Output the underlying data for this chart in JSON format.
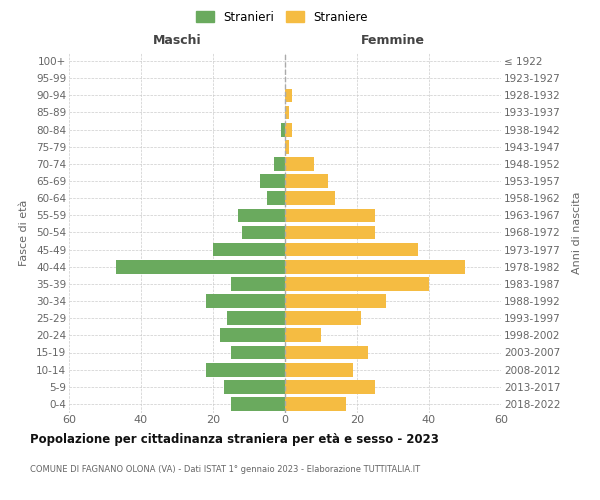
{
  "age_groups": [
    "100+",
    "95-99",
    "90-94",
    "85-89",
    "80-84",
    "75-79",
    "70-74",
    "65-69",
    "60-64",
    "55-59",
    "50-54",
    "45-49",
    "40-44",
    "35-39",
    "30-34",
    "25-29",
    "20-24",
    "15-19",
    "10-14",
    "5-9",
    "0-4"
  ],
  "birth_years": [
    "≤ 1922",
    "1923-1927",
    "1928-1932",
    "1933-1937",
    "1938-1942",
    "1943-1947",
    "1948-1952",
    "1953-1957",
    "1958-1962",
    "1963-1967",
    "1968-1972",
    "1973-1977",
    "1978-1982",
    "1983-1987",
    "1988-1992",
    "1993-1997",
    "1998-2002",
    "2003-2007",
    "2008-2012",
    "2013-2017",
    "2018-2022"
  ],
  "maschi": [
    0,
    0,
    0,
    0,
    1,
    0,
    3,
    7,
    5,
    13,
    12,
    20,
    47,
    15,
    22,
    16,
    18,
    15,
    22,
    17,
    15
  ],
  "femmine": [
    0,
    0,
    2,
    1,
    2,
    1,
    8,
    12,
    14,
    25,
    25,
    37,
    50,
    40,
    28,
    21,
    10,
    23,
    19,
    25,
    17
  ],
  "color_maschi": "#6aaa5e",
  "color_femmine": "#f5bc42",
  "title": "Popolazione per cittadinanza straniera per età e sesso - 2023",
  "subtitle": "COMUNE DI FAGNANO OLONA (VA) - Dati ISTAT 1° gennaio 2023 - Elaborazione TUTTITALIA.IT",
  "xlabel_left": "Maschi",
  "xlabel_right": "Femmine",
  "ylabel_left": "Fasce di età",
  "ylabel_right": "Anni di nascita",
  "legend_maschi": "Stranieri",
  "legend_femmine": "Straniere",
  "xlim": 60,
  "background_color": "#ffffff",
  "grid_color": "#cccccc",
  "bar_height": 0.8,
  "dashed_line_color": "#aaaaaa"
}
